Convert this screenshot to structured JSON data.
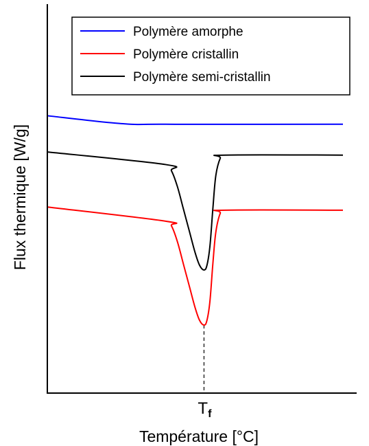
{
  "chart_data": {
    "type": "line",
    "title": "",
    "xlabel": "Température [°C]",
    "ylabel": "Flux thermique [W/g]",
    "x_ticks": [
      {
        "x": 53,
        "label_main": "T",
        "label_sub": "f"
      }
    ],
    "marker_line": {
      "x": 53,
      "style": "dashed",
      "color": "#000000"
    },
    "xlim": [
      0,
      100
    ],
    "ylim": [
      0,
      100
    ],
    "grid": false,
    "legend_position": "top-right",
    "series": [
      {
        "name": "Polymère amorphe",
        "color": "#0000ff",
        "x": [
          0,
          25,
          40,
          100
        ],
        "y": [
          82,
          79.5,
          79.3,
          79.3
        ]
      },
      {
        "name": "Polymère cristallin",
        "color": "#ff0000",
        "x": [
          0,
          40,
          42,
          44,
          46,
          48,
          50,
          51.5,
          53,
          54,
          55,
          56,
          57,
          58.5,
          60,
          100
        ],
        "y": [
          53,
          48.5,
          47,
          42,
          35,
          28,
          21,
          17,
          15.5,
          17,
          23,
          35,
          45,
          51,
          52,
          52
        ]
      },
      {
        "name": "Polymère semi-cristallin",
        "color": "#000000",
        "x": [
          0,
          40,
          42,
          44,
          46,
          48,
          50,
          51.5,
          53,
          54,
          55,
          56,
          57,
          58.5,
          60,
          100
        ],
        "y": [
          70.5,
          66.5,
          64.5,
          59.5,
          52.5,
          45.5,
          38.5,
          34.5,
          33,
          34.5,
          40.5,
          52.5,
          63,
          68.5,
          69.5,
          69.5
        ]
      }
    ]
  }
}
